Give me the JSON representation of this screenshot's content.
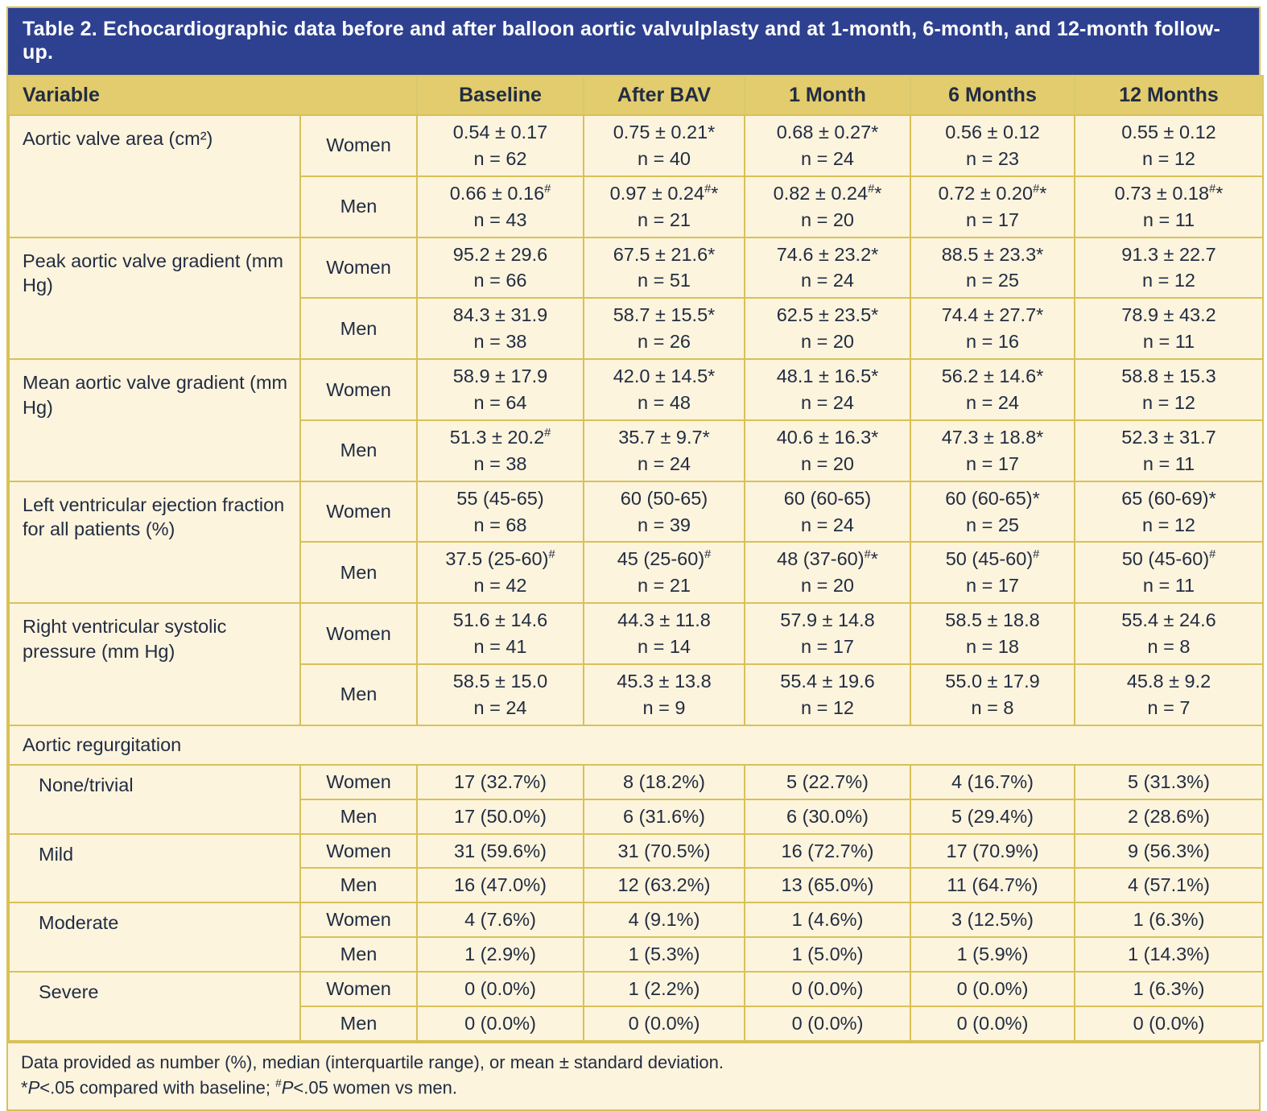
{
  "title": "Table 2. Echocardiographic data before and after balloon aortic valvulplasty and at 1-month, 6-month, and 12-month follow-up.",
  "header": {
    "variable": "Variable",
    "columns": [
      "Baseline",
      "After BAV",
      "1 Month",
      "6 Months",
      "12 Months"
    ]
  },
  "groups": [
    {
      "label": "Aortic valve area (cm²)",
      "indent": false,
      "rows": [
        {
          "sex": "Women",
          "cells": [
            {
              "v": "0.54 ± 0.17",
              "n": "n = 62"
            },
            {
              "v": "0.75 ± 0.21*",
              "n": "n = 40"
            },
            {
              "v": "0.68 ± 0.27*",
              "n": "n = 24"
            },
            {
              "v": "0.56 ± 0.12",
              "n": "n = 23"
            },
            {
              "v": "0.55 ± 0.12",
              "n": "n = 12"
            }
          ]
        },
        {
          "sex": "Men",
          "cells": [
            {
              "v": "0.66 ± 0.16^#^",
              "n": "n = 43"
            },
            {
              "v": "0.97 ± 0.24^#^*",
              "n": "n = 21"
            },
            {
              "v": "0.82 ± 0.24^#^*",
              "n": "n = 20"
            },
            {
              "v": "0.72 ± 0.20^#^*",
              "n": "n = 17"
            },
            {
              "v": "0.73 ± 0.18^#^*",
              "n": "n = 11"
            }
          ]
        }
      ]
    },
    {
      "label": "Peak aortic valve gradient (mm Hg)",
      "indent": false,
      "rows": [
        {
          "sex": "Women",
          "cells": [
            {
              "v": "95.2 ± 29.6",
              "n": "n = 66"
            },
            {
              "v": "67.5 ± 21.6*",
              "n": "n = 51"
            },
            {
              "v": "74.6 ± 23.2*",
              "n": "n = 24"
            },
            {
              "v": "88.5 ± 23.3*",
              "n": "n = 25"
            },
            {
              "v": "91.3 ± 22.7",
              "n": "n = 12"
            }
          ]
        },
        {
          "sex": "Men",
          "cells": [
            {
              "v": "84.3 ± 31.9",
              "n": "n = 38"
            },
            {
              "v": "58.7 ± 15.5*",
              "n": "n = 26"
            },
            {
              "v": "62.5 ± 23.5*",
              "n": "n = 20"
            },
            {
              "v": "74.4 ± 27.7*",
              "n": "n = 16"
            },
            {
              "v": "78.9 ± 43.2",
              "n": "n = 11"
            }
          ]
        }
      ]
    },
    {
      "label": "Mean aortic valve gradient (mm Hg)",
      "indent": false,
      "rows": [
        {
          "sex": "Women",
          "cells": [
            {
              "v": "58.9 ± 17.9",
              "n": "n = 64"
            },
            {
              "v": "42.0 ± 14.5*",
              "n": "n = 48"
            },
            {
              "v": "48.1 ± 16.5*",
              "n": "n = 24"
            },
            {
              "v": "56.2 ± 14.6*",
              "n": "n = 24"
            },
            {
              "v": "58.8 ± 15.3",
              "n": "n = 12"
            }
          ]
        },
        {
          "sex": "Men",
          "cells": [
            {
              "v": "51.3 ± 20.2^#^",
              "n": "n = 38"
            },
            {
              "v": "35.7 ± 9.7*",
              "n": "n = 24"
            },
            {
              "v": "40.6 ± 16.3*",
              "n": "n = 20"
            },
            {
              "v": "47.3 ± 18.8*",
              "n": "n = 17"
            },
            {
              "v": "52.3 ± 31.7",
              "n": "n = 11"
            }
          ]
        }
      ]
    },
    {
      "label": "Left ventricular ejection fraction for all patients (%)",
      "indent": false,
      "rows": [
        {
          "sex": "Women",
          "cells": [
            {
              "v": "55 (45-65)",
              "n": "n = 68"
            },
            {
              "v": "60 (50-65)",
              "n": "n = 39"
            },
            {
              "v": "60 (60-65)",
              "n": "n = 24"
            },
            {
              "v": "60 (60-65)*",
              "n": "n = 25"
            },
            {
              "v": "65 (60-69)*",
              "n": "n = 12"
            }
          ]
        },
        {
          "sex": "Men",
          "cells": [
            {
              "v": "37.5 (25-60)^#^",
              "n": "n = 42"
            },
            {
              "v": "45 (25-60)^#^",
              "n": "n = 21"
            },
            {
              "v": "48 (37-60)^#^*",
              "n": "n = 20"
            },
            {
              "v": "50 (45-60)^#^",
              "n": "n = 17"
            },
            {
              "v": "50 (45-60)^#^",
              "n": "n = 11"
            }
          ]
        }
      ]
    },
    {
      "label": "Right ventricular systolic pressure (mm Hg)",
      "indent": false,
      "rows": [
        {
          "sex": "Women",
          "cells": [
            {
              "v": "51.6 ± 14.6",
              "n": "n = 41"
            },
            {
              "v": "44.3 ± 11.8",
              "n": "n = 14"
            },
            {
              "v": "57.9 ± 14.8",
              "n": "n = 17"
            },
            {
              "v": "58.5 ± 18.8",
              "n": "n = 18"
            },
            {
              "v": "55.4 ± 24.6",
              "n": "n = 8"
            }
          ]
        },
        {
          "sex": "Men",
          "cells": [
            {
              "v": "58.5 ± 15.0",
              "n": "n = 24"
            },
            {
              "v": "45.3 ± 13.8",
              "n": "n = 9"
            },
            {
              "v": "55.4 ± 19.6",
              "n": "n = 12"
            },
            {
              "v": "55.0 ± 17.9",
              "n": "n = 8"
            },
            {
              "v": "45.8 ± 9.2",
              "n": "n = 7"
            }
          ]
        }
      ]
    },
    {
      "section": "Aortic regurgitation"
    },
    {
      "label": "None/trivial",
      "indent": true,
      "rows": [
        {
          "sex": "Women",
          "cells": [
            {
              "v": "17 (32.7%)"
            },
            {
              "v": "8 (18.2%)"
            },
            {
              "v": "5 (22.7%)"
            },
            {
              "v": "4 (16.7%)"
            },
            {
              "v": "5 (31.3%)"
            }
          ]
        },
        {
          "sex": "Men",
          "cells": [
            {
              "v": "17 (50.0%)"
            },
            {
              "v": "6 (31.6%)"
            },
            {
              "v": "6 (30.0%)"
            },
            {
              "v": "5 (29.4%)"
            },
            {
              "v": "2 (28.6%)"
            }
          ]
        }
      ]
    },
    {
      "label": "Mild",
      "indent": true,
      "rows": [
        {
          "sex": "Women",
          "cells": [
            {
              "v": "31 (59.6%)"
            },
            {
              "v": "31 (70.5%)"
            },
            {
              "v": "16 (72.7%)"
            },
            {
              "v": "17 (70.9%)"
            },
            {
              "v": "9 (56.3%)"
            }
          ]
        },
        {
          "sex": "Men",
          "cells": [
            {
              "v": "16 (47.0%)"
            },
            {
              "v": "12 (63.2%)"
            },
            {
              "v": "13 (65.0%)"
            },
            {
              "v": "11 (64.7%)"
            },
            {
              "v": "4 (57.1%)"
            }
          ]
        }
      ]
    },
    {
      "label": "Moderate",
      "indent": true,
      "rows": [
        {
          "sex": "Women",
          "cells": [
            {
              "v": "4 (7.6%)"
            },
            {
              "v": "4 (9.1%)"
            },
            {
              "v": "1 (4.6%)"
            },
            {
              "v": "3 (12.5%)"
            },
            {
              "v": "1 (6.3%)"
            }
          ]
        },
        {
          "sex": "Men",
          "cells": [
            {
              "v": "1 (2.9%)"
            },
            {
              "v": "1 (5.3%)"
            },
            {
              "v": "1 (5.0%)"
            },
            {
              "v": "1 (5.9%)"
            },
            {
              "v": "1 (14.3%)"
            }
          ]
        }
      ]
    },
    {
      "label": "Severe",
      "indent": true,
      "rows": [
        {
          "sex": "Women",
          "cells": [
            {
              "v": "0 (0.0%)"
            },
            {
              "v": "1 (2.2%)"
            },
            {
              "v": "0 (0.0%)"
            },
            {
              "v": "0 (0.0%)"
            },
            {
              "v": "1 (6.3%)"
            }
          ]
        },
        {
          "sex": "Men",
          "cells": [
            {
              "v": "0 (0.0%)"
            },
            {
              "v": "0 (0.0%)"
            },
            {
              "v": "0 (0.0%)"
            },
            {
              "v": "0 (0.0%)"
            },
            {
              "v": "0 (0.0%)"
            }
          ]
        }
      ]
    }
  ],
  "footnote": {
    "line1": "Data provided as number (%), median (interquartile range), or mean ± standard deviation.",
    "line2_star": "*",
    "line2_p1": "P",
    "line2_t1": "<.05 compared with baseline; ",
    "line2_hash": "#",
    "line2_p2": "P",
    "line2_t2": "<.05 women vs men."
  },
  "colors": {
    "title_bar": "#2e4190",
    "title_text": "#ffffff",
    "header_bg": "#e2cc6d",
    "cell_bg": "#fdf4dd",
    "border": "#d8c158",
    "text": "#222c42"
  }
}
